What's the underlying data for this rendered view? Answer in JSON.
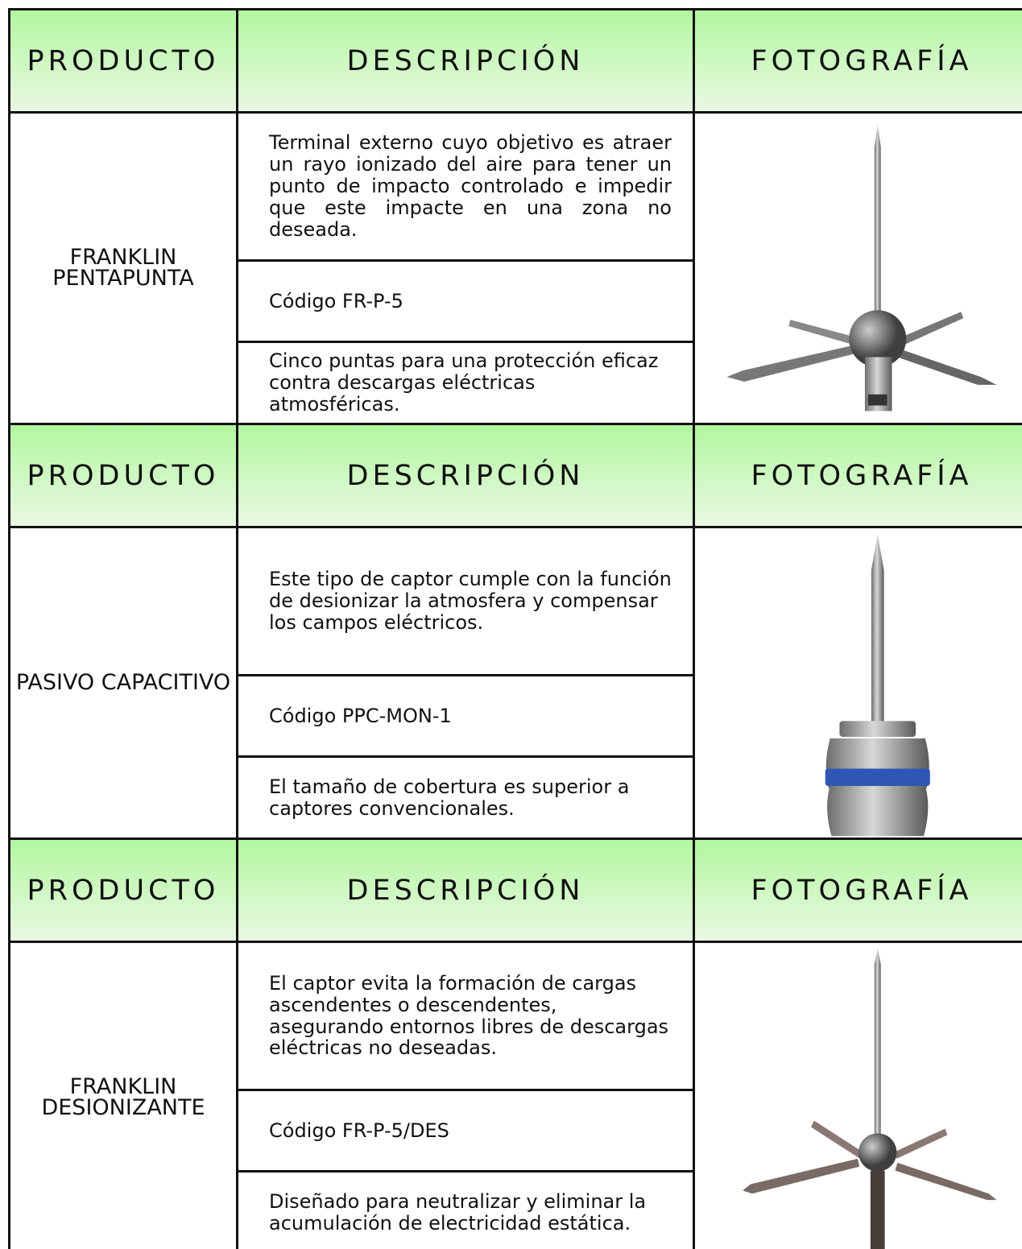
{
  "sections": [
    {
      "header": {
        "product": "PRODUCTO",
        "description": "DESCRIPCIÓN",
        "photo": "FOTOGRAFÍA"
      },
      "product": "FRANKLIN PENTAPUNTA",
      "description": [
        "Terminal externo cuyo objetivo es atraer un rayo ionizado del aire para tener un punto de impacto controlado e impedir que este impacte en una zona no deseada.",
        "Código FR-P-5",
        "Cinco puntas para una protección eficaz contra descargas eléctricas atmosféricas."
      ]
    },
    {
      "header": {
        "product": "PRODUCTO",
        "description": "DESCRIPCIÓN",
        "photo": "FOTOGRAFÍA"
      },
      "product": "PASIVO CAPACITIVO",
      "description": [
        "Este tipo de captor cumple con la función de desionizar la atmosfera y compensar los campos eléctricos.",
        "Código PPC-MON-1",
        "El tamaño de cobertura es superior a captores convencionales."
      ]
    },
    {
      "header": {
        "product": "PRODUCTO",
        "description": "DESCRIPCIÓN",
        "photo": "FOTOGRAFÍA"
      },
      "product": "FRANKLIN DESIONIZANTE",
      "description": [
        "El captor evita la formación de cargas ascendentes o descendentes, asegurando entornos libres de descargas eléctricas no deseadas.",
        "Código FR-P-5/DES",
        "Diseñado para neutralizar y eliminar la acumulación de electricidad estática."
      ]
    }
  ]
}
